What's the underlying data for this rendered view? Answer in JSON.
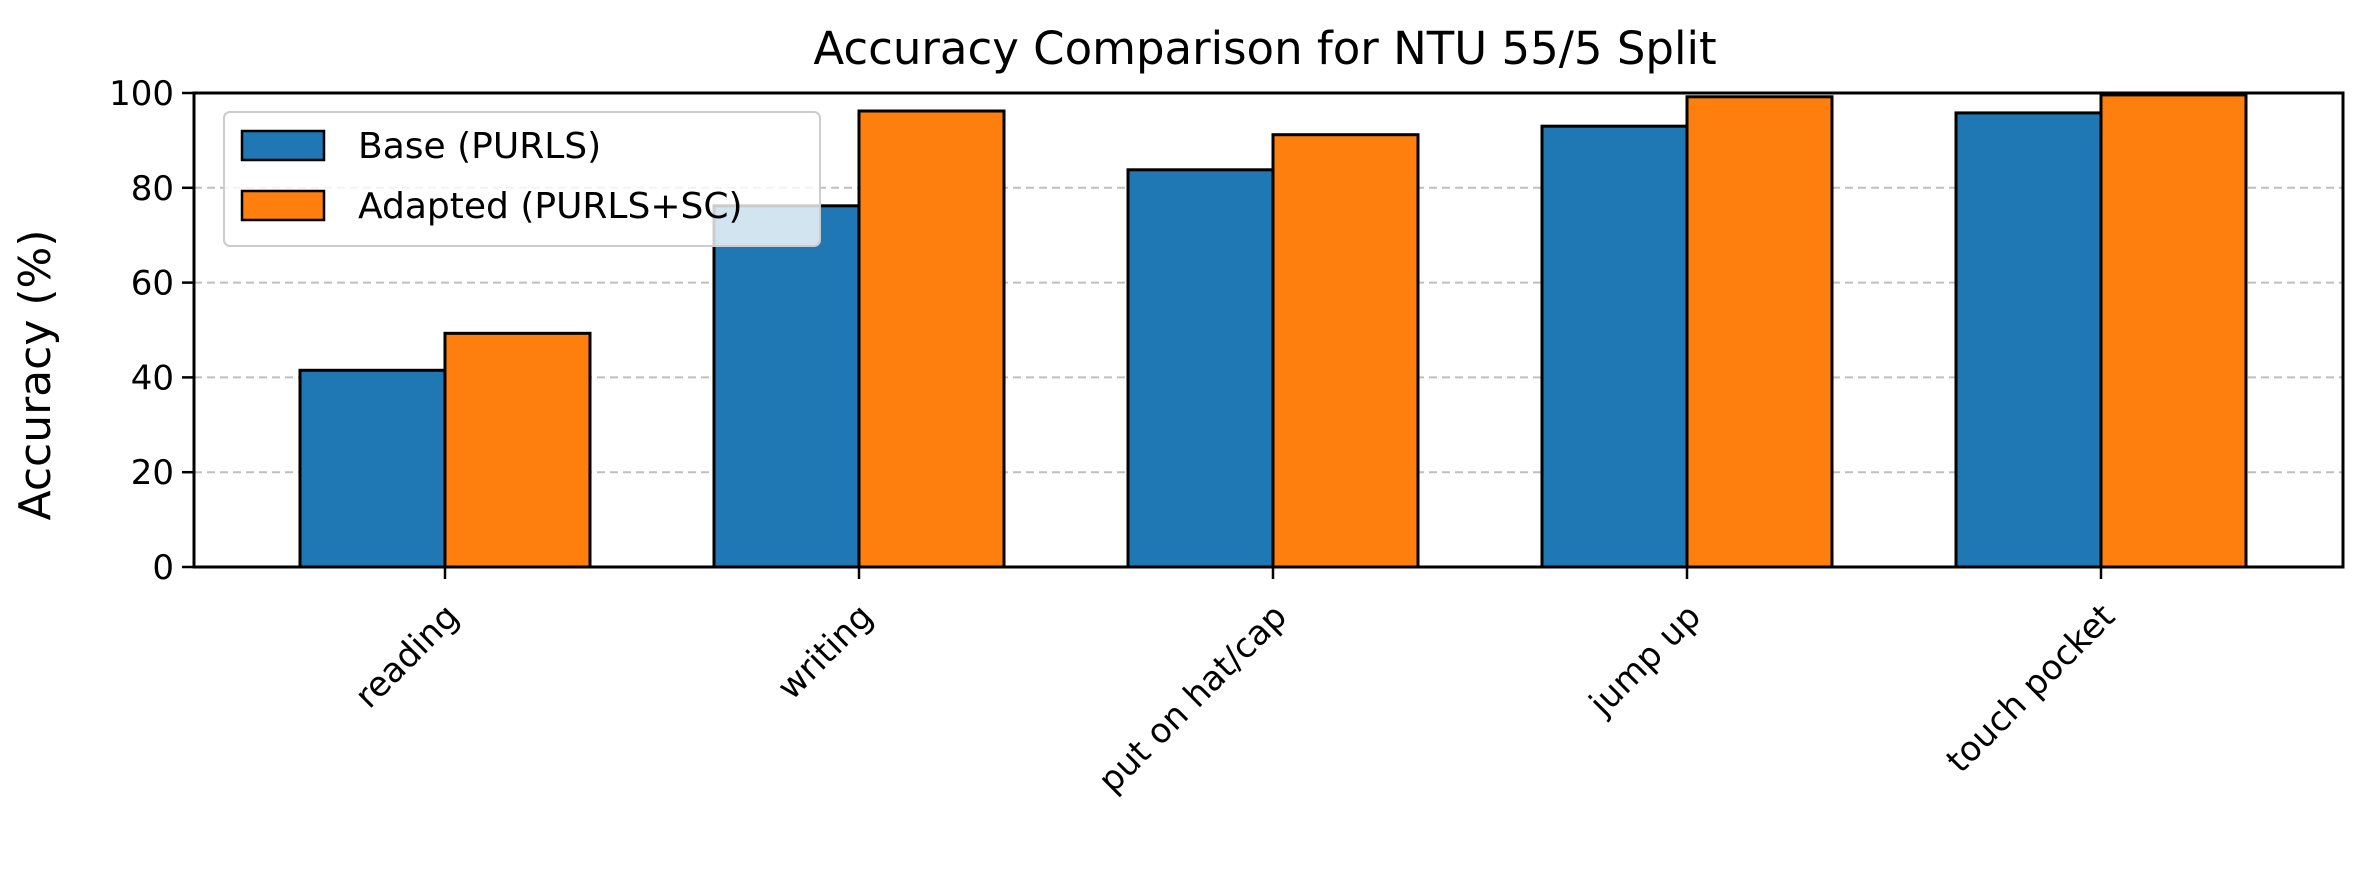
{
  "chart_data": {
    "type": "bar",
    "title": "Accuracy Comparison for NTU 55/5 Split",
    "xlabel": "",
    "ylabel": "Accuracy (%)",
    "categories": [
      "reading",
      "writing",
      "put on hat/cap",
      "jump up",
      "touch pocket"
    ],
    "series": [
      {
        "name": "Base (PURLS)",
        "values": [
          41.5,
          76.2,
          83.8,
          93.0,
          95.8
        ],
        "color": "#1f77b4"
      },
      {
        "name": "Adapted (PURLS+SC)",
        "values": [
          49.3,
          96.2,
          91.2,
          99.2,
          99.6
        ],
        "color": "#ff7f0e"
      }
    ],
    "ylim": [
      0,
      100
    ],
    "yticks": [
      0,
      20,
      40,
      60,
      80,
      100
    ],
    "grid": "y-dashed",
    "legend_position": "upper-left"
  }
}
